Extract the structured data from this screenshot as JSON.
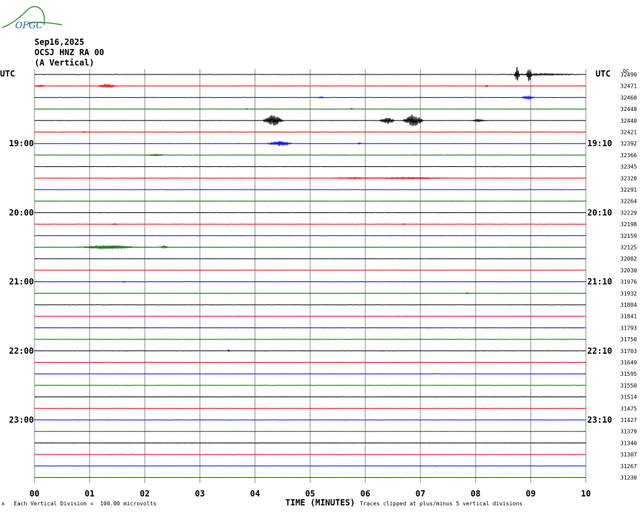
{
  "logo": {
    "text": "OFGC"
  },
  "header": {
    "date": "Sep16,2025",
    "station": "OCSJ HNZ RA 00",
    "component": "(A Vertical)"
  },
  "footer": {
    "scale_note": "Each Vertical Division =  100.00 microvolts",
    "clip_note": "Traces clipped at plus/minus 5 vertical divisions",
    "corner_mark": "ʌ"
  },
  "chart_data": {
    "type": "line",
    "xlabel": "TIME (MINUTES)",
    "x_ticks": [
      "00",
      "01",
      "02",
      "03",
      "04",
      "05",
      "06",
      "07",
      "08",
      "09",
      "10"
    ],
    "xlim": [
      0,
      10
    ],
    "left_label": "UTC",
    "right_label": "UTC",
    "dc_label": "DC",
    "left_time_labels": [
      "19:00",
      "20:00",
      "21:00",
      "22:00",
      "23:00"
    ],
    "right_time_labels": [
      "19:10",
      "20:10",
      "21:10",
      "22:10",
      "23:10"
    ],
    "time_label_rows": [
      6,
      12,
      18,
      24,
      30
    ],
    "trace_colors": [
      "#000000",
      "#e00000",
      "#0000e0",
      "#006400"
    ],
    "dc_offsets": [
      32490,
      32471,
      32460,
      32448,
      32440,
      32421,
      32392,
      32366,
      32345,
      32320,
      32291,
      32264,
      32229,
      32198,
      32159,
      32125,
      32082,
      32030,
      31976,
      31932,
      31884,
      31841,
      31793,
      31750,
      31703,
      31649,
      31595,
      31550,
      31514,
      31475,
      31427,
      31379,
      31340,
      31307,
      31267,
      31230
    ],
    "events": [
      {
        "row": 0,
        "t": 8.75,
        "amp": 5,
        "dur": 0.05
      },
      {
        "row": 0,
        "t": 8.97,
        "amp": 5,
        "dur": 0.05
      },
      {
        "row": 0,
        "t": 9.2,
        "amp": 0.6,
        "dur": 0.8
      },
      {
        "row": 1,
        "t": 0.1,
        "amp": 0.7,
        "dur": 0.12
      },
      {
        "row": 1,
        "t": 1.32,
        "amp": 1.2,
        "dur": 0.2
      },
      {
        "row": 1,
        "t": 8.2,
        "amp": 0.5,
        "dur": 0.05
      },
      {
        "row": 2,
        "t": 5.2,
        "amp": 0.5,
        "dur": 0.08
      },
      {
        "row": 2,
        "t": 8.95,
        "amp": 1.1,
        "dur": 0.15
      },
      {
        "row": 3,
        "t": 3.85,
        "amp": 0.5,
        "dur": 0.03
      },
      {
        "row": 3,
        "t": 5.75,
        "amp": 0.5,
        "dur": 0.03
      },
      {
        "row": 4,
        "t": 4.33,
        "amp": 4,
        "dur": 0.2
      },
      {
        "row": 4,
        "t": 6.4,
        "amp": 2.2,
        "dur": 0.15
      },
      {
        "row": 4,
        "t": 6.87,
        "amp": 4.2,
        "dur": 0.2
      },
      {
        "row": 4,
        "t": 8.05,
        "amp": 0.8,
        "dur": 0.15
      },
      {
        "row": 5,
        "t": 0.9,
        "amp": 0.4,
        "dur": 0.05
      },
      {
        "row": 6,
        "t": 4.45,
        "amp": 1.6,
        "dur": 0.25
      },
      {
        "row": 6,
        "t": 5.9,
        "amp": 0.5,
        "dur": 0.05
      },
      {
        "row": 7,
        "t": 2.2,
        "amp": 0.6,
        "dur": 0.2
      },
      {
        "row": 9,
        "t": 5.8,
        "amp": 0.5,
        "dur": 0.5
      },
      {
        "row": 9,
        "t": 6.8,
        "amp": 0.6,
        "dur": 0.8
      },
      {
        "row": 13,
        "t": 1.45,
        "amp": 0.4,
        "dur": 0.1
      },
      {
        "row": 13,
        "t": 6.7,
        "amp": 0.4,
        "dur": 0.05
      },
      {
        "row": 15,
        "t": 1.35,
        "amp": 1.2,
        "dur": 0.6
      },
      {
        "row": 15,
        "t": 2.35,
        "amp": 0.8,
        "dur": 0.1
      },
      {
        "row": 18,
        "t": 1.62,
        "amp": 0.5,
        "dur": 0.03
      },
      {
        "row": 19,
        "t": 7.85,
        "amp": 0.5,
        "dur": 0.05
      },
      {
        "row": 24,
        "t": 3.52,
        "amp": 0.7,
        "dur": 0.03
      }
    ]
  }
}
